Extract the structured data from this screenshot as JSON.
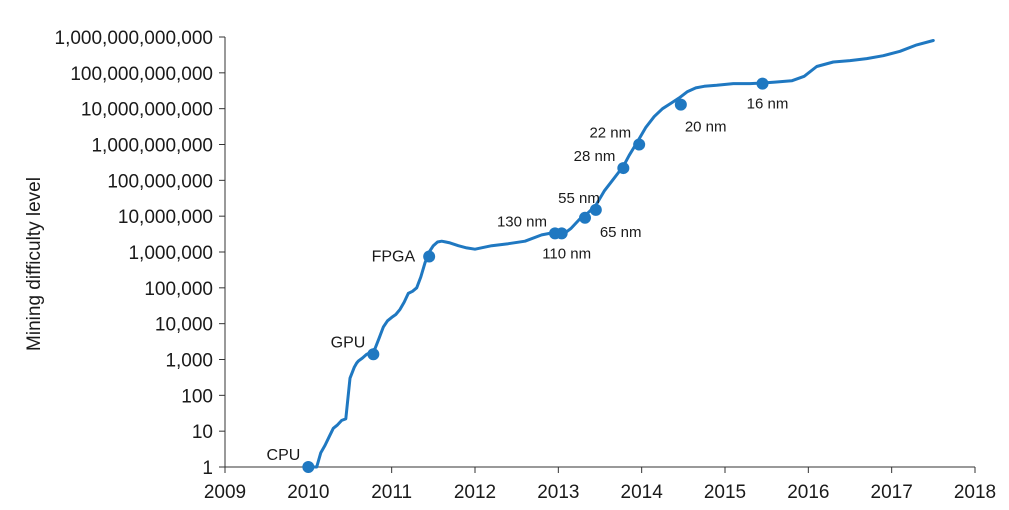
{
  "chart_data": {
    "type": "line",
    "title": "",
    "ylabel": "Mining difficulty level",
    "xlabel": "",
    "y_scale": "log",
    "xlim": [
      2009,
      2018
    ],
    "ylim": [
      1,
      1000000000000
    ],
    "grid": false,
    "legend": "none",
    "line_color": "#1f78c1",
    "x_ticks": [
      "2009",
      "2010",
      "2011",
      "2012",
      "2013",
      "2014",
      "2015",
      "2016",
      "2017",
      "2018"
    ],
    "y_ticks": [
      {
        "value": 1,
        "label": "1"
      },
      {
        "value": 10,
        "label": "10"
      },
      {
        "value": 100,
        "label": "100"
      },
      {
        "value": 1000,
        "label": "1,000"
      },
      {
        "value": 10000,
        "label": "10,000"
      },
      {
        "value": 100000,
        "label": "100,000"
      },
      {
        "value": 1000000,
        "label": "1,000,000"
      },
      {
        "value": 10000000,
        "label": "10,000,000"
      },
      {
        "value": 100000000,
        "label": "100,000,000"
      },
      {
        "value": 1000000000,
        "label": "1,000,000,000"
      },
      {
        "value": 10000000000,
        "label": "10,000,000,000"
      },
      {
        "value": 100000000000,
        "label": "100,000,000,000"
      },
      {
        "value": 1000000000000,
        "label": "1,000,000,000,000"
      }
    ],
    "series": [
      {
        "x": [
          2010.0,
          2010.1,
          2010.15,
          2010.2,
          2010.25,
          2010.3,
          2010.35,
          2010.4,
          2010.45,
          2010.5,
          2010.55,
          2010.58,
          2010.6,
          2010.65,
          2010.7,
          2010.75,
          2010.8,
          2010.85,
          2010.9,
          2010.95,
          2011.0,
          2011.05,
          2011.1,
          2011.15,
          2011.2,
          2011.25,
          2011.3,
          2011.35,
          2011.4,
          2011.45,
          2011.5,
          2011.55,
          2011.6,
          2011.65,
          2011.7,
          2011.8,
          2011.9,
          2012.0,
          2012.2,
          2012.4,
          2012.6,
          2012.8,
          2012.95,
          2013.05,
          2013.15,
          2013.25,
          2013.35,
          2013.45,
          2013.55,
          2013.65,
          2013.75,
          2013.8,
          2013.85,
          2013.95,
          2014.05,
          2014.15,
          2014.25,
          2014.35,
          2014.45,
          2014.55,
          2014.65,
          2014.75,
          2014.9,
          2015.1,
          2015.3,
          2015.45,
          2015.6,
          2015.8,
          2015.95,
          2016.1,
          2016.3,
          2016.5,
          2016.7,
          2016.9,
          2017.1,
          2017.3,
          2017.5
        ],
        "y": [
          1,
          1,
          2.5,
          4,
          7,
          12,
          15,
          20,
          22,
          300,
          600,
          800,
          900,
          1100,
          1400,
          1600,
          2000,
          4000,
          8000,
          12000,
          15000,
          18000,
          25000,
          40000,
          70000,
          80000,
          100000,
          200000,
          500000,
          1000000,
          1500000,
          1900000,
          2000000,
          1900000,
          1800000,
          1500000,
          1300000,
          1200000,
          1500000,
          1700000,
          2000000,
          3000000,
          3500000,
          3000000,
          4500000,
          8000000,
          12000000,
          20000000,
          50000000,
          100000000,
          200000000,
          300000000,
          500000000,
          1200000000,
          3000000000,
          6000000000,
          10000000000,
          14000000000,
          20000000000,
          30000000000,
          38000000000,
          42000000000,
          45000000000,
          50000000000,
          50000000000,
          52000000000,
          55000000000,
          60000000000,
          80000000000,
          150000000000,
          200000000000,
          220000000000,
          250000000000,
          300000000000,
          400000000000,
          600000000000,
          800000000000
        ]
      }
    ],
    "annotations": [
      {
        "label": "CPU",
        "x": 2010.0,
        "y": 1,
        "pos": "upper-left"
      },
      {
        "label": "GPU",
        "x": 2010.78,
        "y": 1400,
        "pos": "upper-left"
      },
      {
        "label": "FPGA",
        "x": 2011.45,
        "y": 750000,
        "pos": "left"
      },
      {
        "label": "130 nm",
        "x": 2012.96,
        "y": 3300000,
        "pos": "upper-left"
      },
      {
        "label": "110 nm",
        "x": 2013.04,
        "y": 3300000,
        "pos": "below"
      },
      {
        "label": "65 nm",
        "x": 2013.45,
        "y": 15000000,
        "pos": "below-right"
      },
      {
        "label": "55 nm",
        "x": 2013.32,
        "y": 9000000,
        "pos": "upper"
      },
      {
        "label": "28 nm",
        "x": 2013.78,
        "y": 220000000,
        "pos": "upper-left"
      },
      {
        "label": "22 nm",
        "x": 2013.97,
        "y": 1000000000,
        "pos": "upper-left"
      },
      {
        "label": "20 nm",
        "x": 2014.47,
        "y": 13000000000,
        "pos": "below-right"
      },
      {
        "label": "16 nm",
        "x": 2015.45,
        "y": 50000000000,
        "pos": "below"
      }
    ]
  }
}
